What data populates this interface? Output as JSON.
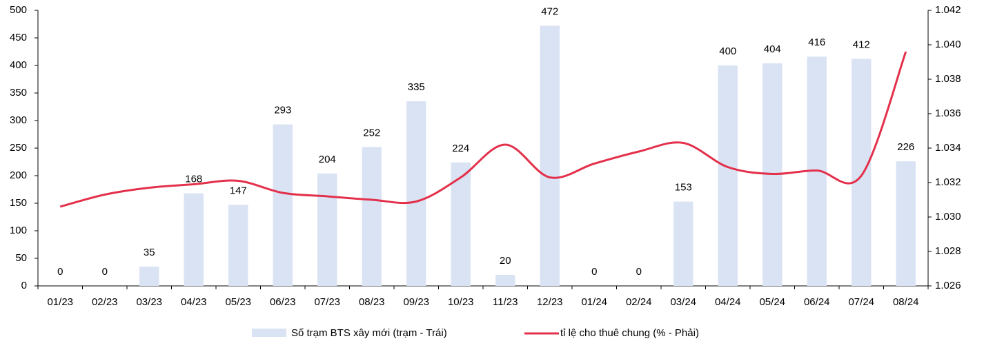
{
  "chart_data": {
    "type": "bar_line",
    "categories": [
      "01/23",
      "02/23",
      "03/23",
      "04/23",
      "05/23",
      "06/23",
      "07/23",
      "08/23",
      "09/23",
      "10/23",
      "11/23",
      "12/23",
      "01/24",
      "02/24",
      "03/24",
      "04/24",
      "05/24",
      "06/24",
      "07/24",
      "08/24"
    ],
    "series": [
      {
        "name": "Số trạm BTS xây mới (trạm - Trái)",
        "type": "bar",
        "color": "#dae3f3",
        "values": [
          0,
          0,
          35,
          168,
          147,
          293,
          204,
          252,
          335,
          224,
          20,
          472,
          0,
          0,
          153,
          400,
          404,
          416,
          412,
          226
        ]
      },
      {
        "name": "tỉ lệ cho thuê chung (% - Phải)",
        "type": "line",
        "axis": "y2",
        "color": "#e3304b",
        "values": [
          1.0306,
          1.0313,
          1.0317,
          1.0319,
          1.0321,
          1.0314,
          1.0312,
          1.031,
          1.0309,
          1.0323,
          1.0342,
          1.0323,
          1.0331,
          1.0338,
          1.0343,
          1.0329,
          1.0325,
          1.0327,
          1.0324,
          1.0396
        ]
      }
    ],
    "ylim": [
      0,
      500
    ],
    "yticks": [
      0,
      50,
      100,
      150,
      200,
      250,
      300,
      350,
      400,
      450,
      500
    ],
    "y2lim": [
      1.026,
      1.042
    ],
    "y2ticks": [
      1.026,
      1.028,
      {
        "value": 1.03,
        "label": "1.030"
      },
      1.032,
      1.034,
      1.036,
      1.038,
      {
        "value": 1.04,
        "label": "1.040"
      },
      1.042
    ],
    "legend": "bottom"
  }
}
